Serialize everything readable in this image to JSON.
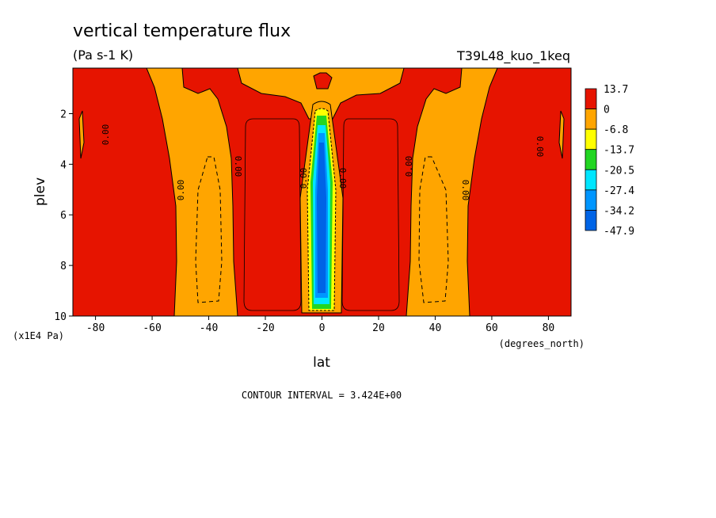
{
  "chart_data": {
    "type": "heatmap",
    "title": "vertical temperature flux",
    "units": "(Pa s-1 K)",
    "run_label": "T39L48_kuo_1keq",
    "xlabel": "lat",
    "x_units": "(degrees_north)",
    "ylabel": "plev",
    "y_units": "(x1E4 Pa)",
    "xlim": [
      -88,
      88
    ],
    "ylim": [
      10,
      0.2
    ],
    "x_ticks": [
      -80,
      -60,
      -40,
      -20,
      0,
      20,
      40,
      60,
      80
    ],
    "y_ticks": [
      2,
      4,
      6,
      8,
      10
    ],
    "contour_interval_text": "CONTOUR INTERVAL = 3.424E+00",
    "contour_label": "0.00",
    "colorbar": {
      "labels": [
        "13.7",
        "0",
        "-6.8",
        "-13.7",
        "-20.5",
        "-27.4",
        "-34.2",
        "-47.9"
      ],
      "colors": [
        "#e61400",
        "#ffa500",
        "#ffff00",
        "#22d622",
        "#00e6ff",
        "#0096ff",
        "#0064e6"
      ]
    },
    "features": [
      {
        "name": "Deep tropical downward-flux band",
        "lat_range": [
          -5,
          5
        ],
        "plev_range": [
          2,
          9.8
        ],
        "min": -47.9
      },
      {
        "name": "Subtropical negative band (south)",
        "lat_range": [
          -52,
          -28
        ],
        "plev_range": [
          1,
          10
        ],
        "value": "0 to -6.8"
      },
      {
        "name": "Subtropical negative band (north)",
        "lat_range": [
          28,
          52
        ],
        "plev_range": [
          1,
          10
        ],
        "value": "0 to -6.8"
      }
    ]
  }
}
